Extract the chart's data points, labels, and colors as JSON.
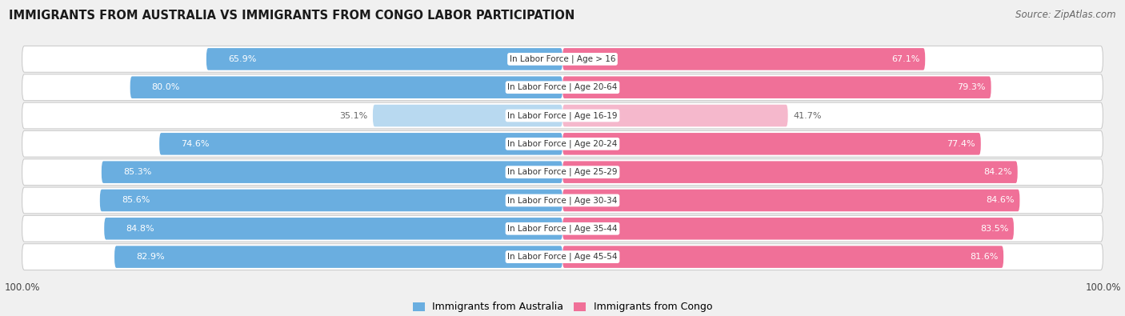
{
  "title": "IMMIGRANTS FROM AUSTRALIA VS IMMIGRANTS FROM CONGO LABOR PARTICIPATION",
  "source": "Source: ZipAtlas.com",
  "categories": [
    "In Labor Force | Age > 16",
    "In Labor Force | Age 20-64",
    "In Labor Force | Age 16-19",
    "In Labor Force | Age 20-24",
    "In Labor Force | Age 25-29",
    "In Labor Force | Age 30-34",
    "In Labor Force | Age 35-44",
    "In Labor Force | Age 45-54"
  ],
  "australia_values": [
    65.9,
    80.0,
    35.1,
    74.6,
    85.3,
    85.6,
    84.8,
    82.9
  ],
  "congo_values": [
    67.1,
    79.3,
    41.7,
    77.4,
    84.2,
    84.6,
    83.5,
    81.6
  ],
  "australia_color_full": "#6aaee0",
  "australia_color_light": "#b8d9f0",
  "congo_color_full": "#f07098",
  "congo_color_light": "#f5b8cc",
  "label_color_full": "white",
  "label_color_light": "#666666",
  "background_color": "#f0f0f0",
  "row_bg_color": "#e8e8e8",
  "bar_bg_color": "#ffffff",
  "max_value": 100.0,
  "threshold_full": 60.0,
  "legend_australia": "Immigrants from Australia",
  "legend_congo": "Immigrants from Congo"
}
